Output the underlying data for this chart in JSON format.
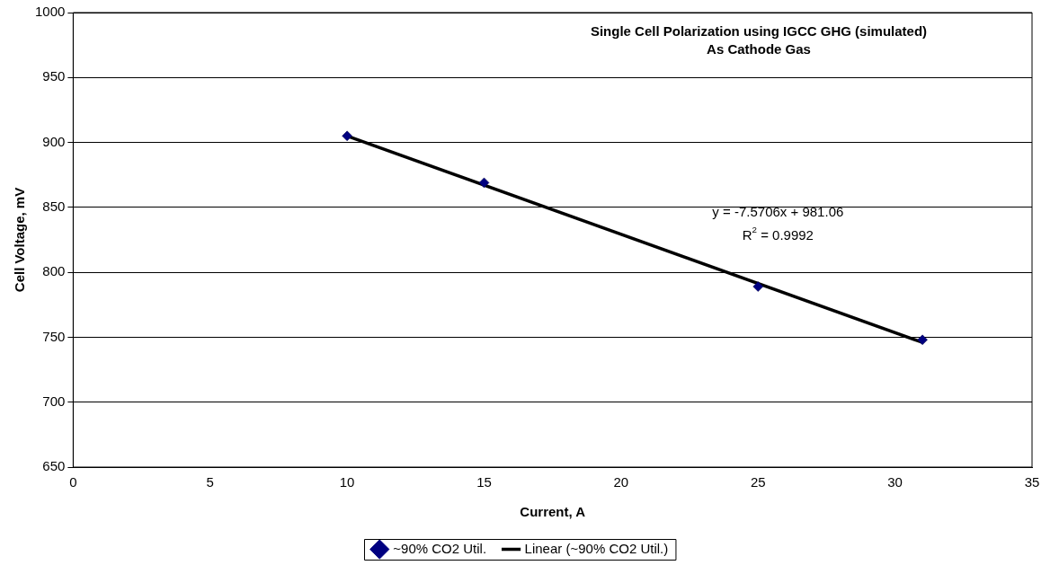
{
  "chart_data": {
    "type": "scatter",
    "title": "Single Cell Polarization using IGCC GHG (simulated)\nAs Cathode Gas",
    "xlabel": "Current, A",
    "ylabel": "Cell Voltage, mV",
    "x": [
      10,
      15,
      25,
      31
    ],
    "series": [
      {
        "name": "~90% CO2 Util.",
        "color": "#000080",
        "values": [
          905,
          869,
          789,
          748
        ],
        "marker": "diamond"
      },
      {
        "name": "Linear (~90% CO2 Util.)",
        "type": "line",
        "color": "#000000",
        "x": [
          10,
          31
        ],
        "values": [
          905,
          746
        ],
        "marker": "none"
      }
    ],
    "annotations": [
      "y = -7.5706x + 981.06",
      "R$^{2}$ = 0.9992"
    ],
    "xlim": [
      0,
      35
    ],
    "xticks": [
      0,
      5,
      10,
      15,
      20,
      25,
      30,
      35
    ],
    "ylim": [
      650,
      1000
    ],
    "yticks": [
      650,
      700,
      750,
      800,
      850,
      900,
      950,
      1000
    ],
    "grid": "y",
    "legend": "bottom"
  }
}
